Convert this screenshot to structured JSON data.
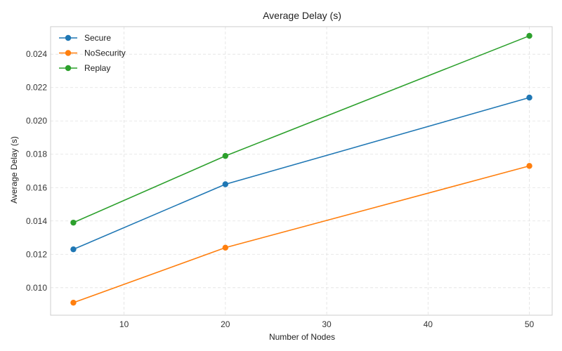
{
  "chart_data": {
    "type": "line",
    "title": "Average Delay (s)",
    "xlabel": "Number of Nodes",
    "ylabel": "Average Delay (s)",
    "x": [
      5,
      20,
      50
    ],
    "xlim": [
      2.75,
      52.25
    ],
    "ylim": [
      0.00835,
      0.02565
    ],
    "xticks": [
      10,
      20,
      30,
      40,
      50
    ],
    "yticks": [
      0.01,
      0.012,
      0.014,
      0.016,
      0.018,
      0.02,
      0.022,
      0.024
    ],
    "xtick_labels": [
      "10",
      "20",
      "30",
      "40",
      "50"
    ],
    "ytick_labels": [
      "0.010",
      "0.012",
      "0.014",
      "0.016",
      "0.018",
      "0.020",
      "0.022",
      "0.024"
    ],
    "grid": true,
    "legend_position": "top-left",
    "series": [
      {
        "name": "Secure",
        "color": "#1f77b4",
        "values": [
          0.0123,
          0.0162,
          0.0214
        ]
      },
      {
        "name": "NoSecurity",
        "color": "#ff7f0e",
        "values": [
          0.0091,
          0.0124,
          0.0173
        ]
      },
      {
        "name": "Replay",
        "color": "#2ca02c",
        "values": [
          0.0139,
          0.0179,
          0.0251
        ]
      }
    ]
  }
}
